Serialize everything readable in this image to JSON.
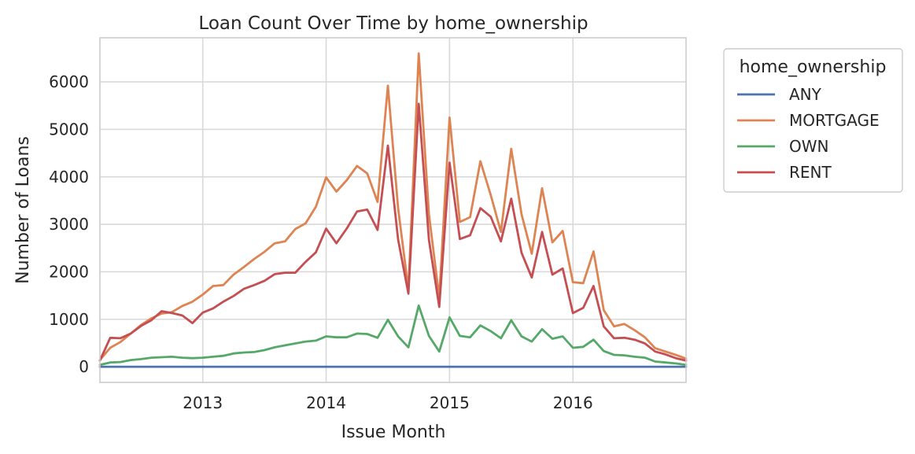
{
  "chart_data": {
    "type": "line",
    "title": "Loan Count Over Time by home_ownership",
    "xlabel": "Issue Month",
    "ylabel": "Number of Loans",
    "x_start": "2012-03",
    "x_end": "2016-12",
    "xlim": [
      "2012-03",
      "2016-12"
    ],
    "ylim": [
      -330,
      6930
    ],
    "x_ticks": [
      "2013",
      "2014",
      "2015",
      "2016"
    ],
    "y_ticks": [
      0,
      1000,
      2000,
      3000,
      4000,
      5000,
      6000
    ],
    "y_tick_labels": [
      "0",
      "1000",
      "2000",
      "3000",
      "4000",
      "5000",
      "6000"
    ],
    "grid": true,
    "legend": {
      "title": "home_ownership",
      "placement": "outside-right"
    },
    "series": [
      {
        "name": "ANY",
        "color": "#4c72b0",
        "values": [
          0,
          0,
          0,
          0,
          0,
          0,
          0,
          0,
          0,
          0,
          0,
          0,
          0,
          0,
          0,
          0,
          0,
          0,
          0,
          0,
          0,
          0,
          0,
          0,
          0,
          0,
          0,
          0,
          0,
          0,
          0,
          0,
          0,
          0,
          0,
          0,
          0,
          0,
          0,
          0,
          0,
          0,
          0,
          0,
          0,
          0,
          0,
          0,
          0,
          0,
          0,
          0,
          0,
          0,
          0,
          0,
          0,
          0
        ]
      },
      {
        "name": "MORTGAGE",
        "color": "#dd8452",
        "values": [
          140,
          400,
          520,
          700,
          880,
          1020,
          1120,
          1150,
          1280,
          1370,
          1520,
          1700,
          1720,
          1940,
          2100,
          2270,
          2420,
          2600,
          2640,
          2900,
          3020,
          3370,
          3990,
          3690,
          3930,
          4230,
          4070,
          3470,
          5920,
          3340,
          1630,
          6600,
          3210,
          1460,
          5250,
          3050,
          3150,
          4330,
          3620,
          2840,
          4590,
          3210,
          2380,
          3760,
          2620,
          2860,
          1780,
          1760,
          2430,
          1190,
          850,
          900,
          770,
          620,
          390,
          320,
          250,
          170
        ]
      },
      {
        "name": "OWN",
        "color": "#55a868",
        "values": [
          40,
          90,
          100,
          140,
          160,
          190,
          200,
          210,
          190,
          180,
          190,
          210,
          230,
          280,
          300,
          310,
          350,
          410,
          450,
          490,
          530,
          550,
          640,
          620,
          620,
          700,
          690,
          610,
          990,
          640,
          410,
          1290,
          650,
          320,
          1040,
          650,
          620,
          870,
          750,
          600,
          980,
          640,
          530,
          790,
          590,
          640,
          400,
          420,
          570,
          330,
          250,
          240,
          210,
          190,
          110,
          90,
          70,
          40
        ]
      },
      {
        "name": "RENT",
        "color": "#c44e52",
        "values": [
          130,
          610,
          600,
          700,
          860,
          980,
          1170,
          1130,
          1080,
          920,
          1140,
          1230,
          1370,
          1490,
          1640,
          1720,
          1810,
          1950,
          1980,
          1980,
          2210,
          2410,
          2910,
          2600,
          2910,
          3270,
          3310,
          2880,
          4660,
          2680,
          1540,
          5540,
          2670,
          1260,
          4300,
          2690,
          2770,
          3340,
          3160,
          2640,
          3540,
          2400,
          1880,
          2840,
          1940,
          2070,
          1130,
          1240,
          1700,
          850,
          600,
          610,
          570,
          490,
          320,
          260,
          180,
          130
        ]
      }
    ]
  }
}
